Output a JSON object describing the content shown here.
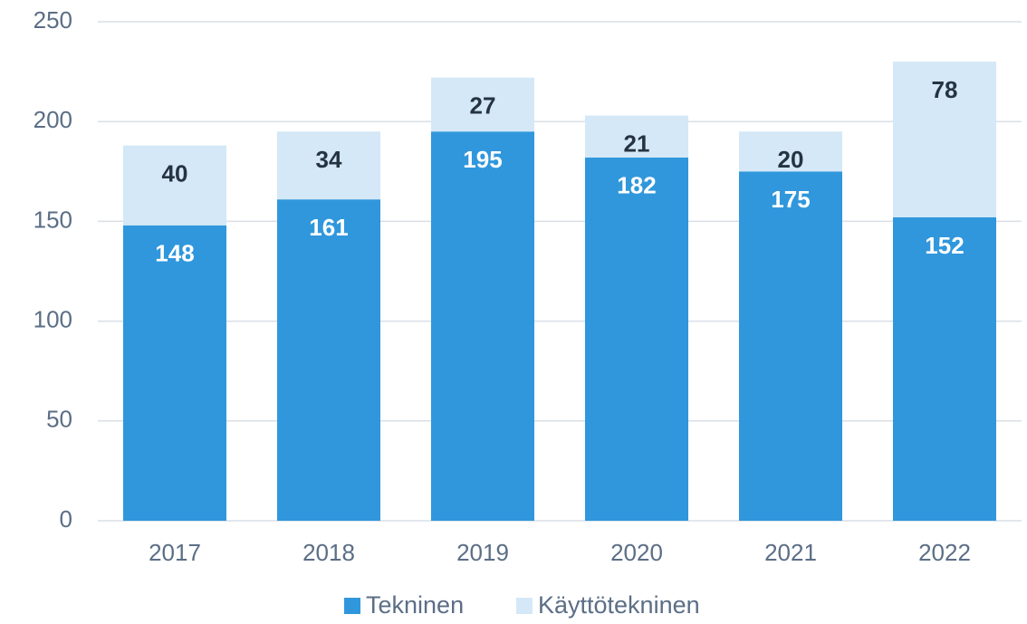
{
  "chart_data": {
    "type": "stacked_bar",
    "categories": [
      "2017",
      "2018",
      "2019",
      "2020",
      "2021",
      "2022"
    ],
    "series": [
      {
        "name": "Tekninen",
        "color": "#3097dc",
        "values": [
          148,
          161,
          195,
          182,
          175,
          152
        ]
      },
      {
        "name": "Käyttötekninen",
        "color": "#d4e8f7",
        "values": [
          40,
          34,
          27,
          21,
          20,
          78
        ]
      }
    ],
    "ylim": [
      0,
      250
    ],
    "yticks": [
      0,
      50,
      100,
      150,
      200,
      250
    ],
    "grid": true,
    "legend": "bottom"
  }
}
